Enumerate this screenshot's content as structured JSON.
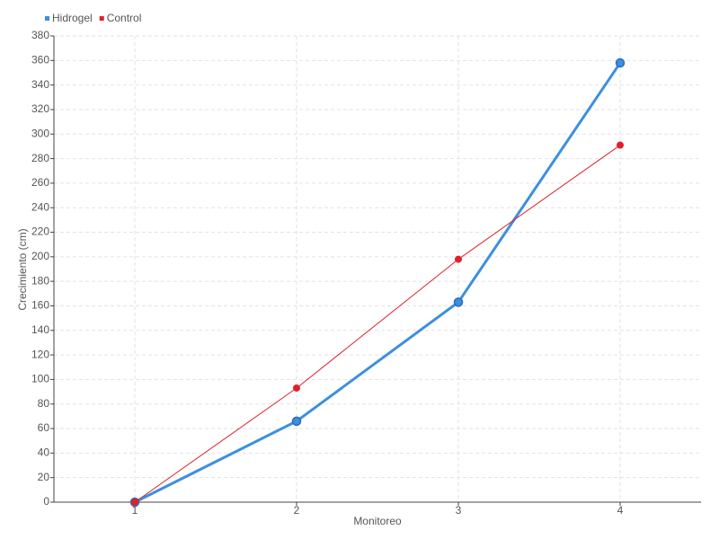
{
  "chart_data": {
    "type": "line",
    "x_label": "Monitoreo",
    "y_label": "Crecimiento (cm)",
    "categories": [
      "1",
      "2",
      "3",
      "4"
    ],
    "series": [
      {
        "name": "Hidrogel",
        "color": "#3d8fe0",
        "values": [
          0,
          66,
          163,
          358
        ]
      },
      {
        "name": "Control",
        "color": "#e0202a",
        "values": [
          0,
          93,
          198,
          291
        ]
      }
    ],
    "ylim": [
      0,
      380
    ],
    "yticks": [
      0,
      20,
      40,
      60,
      80,
      100,
      120,
      140,
      160,
      180,
      200,
      220,
      240,
      260,
      280,
      300,
      320,
      340,
      360,
      380
    ],
    "grid": true,
    "legend": "top-left"
  }
}
